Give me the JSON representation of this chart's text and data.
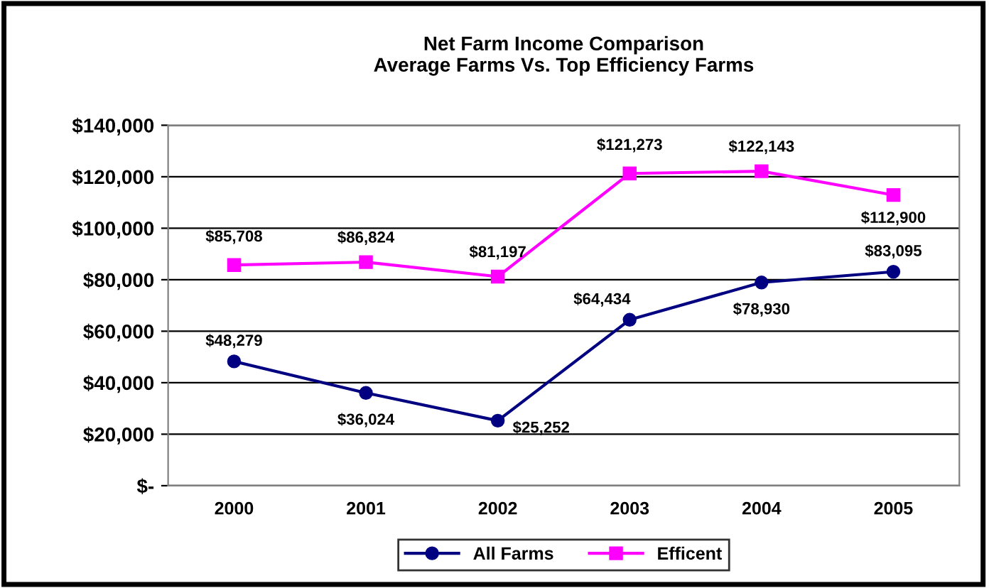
{
  "chart_data": {
    "type": "line",
    "title": "Net Farm Income Comparison\nAverage Farms Vs. Top Efficiency Farms",
    "categories": [
      "2000",
      "2001",
      "2002",
      "2003",
      "2004",
      "2005"
    ],
    "series": [
      {
        "name": "All Farms",
        "color": "#000080",
        "marker": "circle",
        "values": [
          48279,
          36024,
          25252,
          64434,
          78930,
          83095
        ],
        "value_labels": [
          "$48,279",
          "$36,024",
          "$25,252",
          "$64,434",
          "$78,930",
          "$83,095"
        ]
      },
      {
        "name": "Efficent",
        "color": "#ff00ff",
        "marker": "square",
        "values": [
          85708,
          86824,
          81197,
          121273,
          122143,
          112900
        ],
        "value_labels": [
          "$85,708",
          "$86,824",
          "$81,197",
          "$121,273",
          "$122,143",
          "$112,900"
        ]
      }
    ],
    "ylim": [
      0,
      140000
    ],
    "yticks": [
      {
        "value": 0,
        "label": "$-"
      },
      {
        "value": 20000,
        "label": "$20,000"
      },
      {
        "value": 40000,
        "label": "$40,000"
      },
      {
        "value": 60000,
        "label": "$60,000"
      },
      {
        "value": 80000,
        "label": "$80,000"
      },
      {
        "value": 100000,
        "label": "$100,000"
      },
      {
        "value": 120000,
        "label": "$120,000"
      },
      {
        "value": 140000,
        "label": "$140,000"
      }
    ],
    "grid": "y",
    "legend": "bottom",
    "line_style": "solid"
  }
}
